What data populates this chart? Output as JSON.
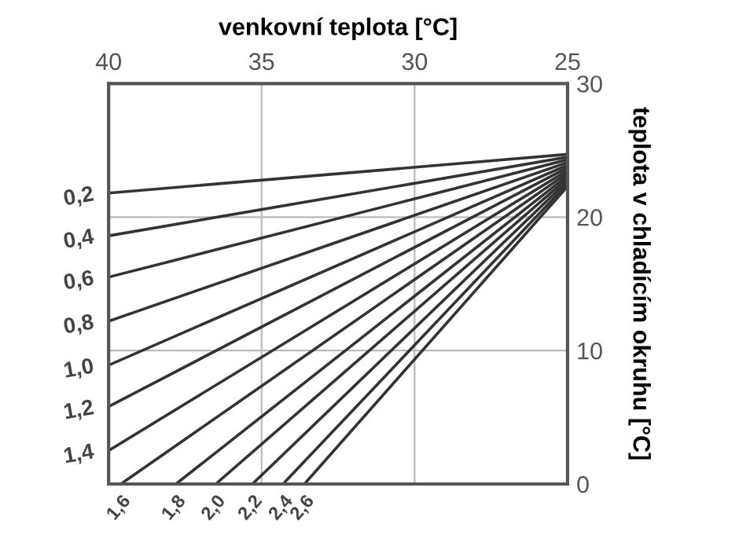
{
  "chart_data": {
    "type": "line",
    "xlabel": "venkovní teplota [°C]",
    "ylabel": "teplota v chladícím okruhu [°C]",
    "xlim": [
      40,
      25
    ],
    "xticks": [
      40,
      35,
      30,
      25
    ],
    "ylim": [
      0,
      30
    ],
    "yticks": [
      0,
      10,
      20,
      30
    ],
    "grid": true,
    "legend": false,
    "marker": "none",
    "line_style": "solid",
    "series": [
      {
        "name": "0,2",
        "color": "#333333",
        "x": [
          40,
          25
        ],
        "values": [
          21.8,
          24.7
        ]
      },
      {
        "name": "0,4",
        "color": "#333333",
        "x": [
          40,
          25
        ],
        "values": [
          18.6,
          24.5
        ]
      },
      {
        "name": "0,6",
        "color": "#333333",
        "x": [
          40,
          25
        ],
        "values": [
          15.5,
          24.3
        ]
      },
      {
        "name": "0,8",
        "color": "#333333",
        "x": [
          40,
          25
        ],
        "values": [
          12.2,
          24.1
        ]
      },
      {
        "name": "1,0",
        "color": "#333333",
        "x": [
          40,
          25
        ],
        "values": [
          8.9,
          23.9
        ]
      },
      {
        "name": "1,2",
        "color": "#333333",
        "x": [
          40,
          25
        ],
        "values": [
          5.8,
          23.7
        ]
      },
      {
        "name": "1,4",
        "color": "#333333",
        "x": [
          40,
          25
        ],
        "values": [
          2.5,
          23.5
        ]
      },
      {
        "name": "1,6",
        "color": "#333333",
        "x": [
          39.6,
          25
        ],
        "values": [
          0,
          23.3
        ]
      },
      {
        "name": "1,8",
        "color": "#333333",
        "x": [
          37.8,
          25
        ],
        "values": [
          0,
          23.1
        ]
      },
      {
        "name": "2,0",
        "color": "#333333",
        "x": [
          36.5,
          25
        ],
        "values": [
          0,
          22.9
        ]
      },
      {
        "name": "2,2",
        "color": "#333333",
        "x": [
          35.3,
          25
        ],
        "values": [
          0,
          22.7
        ]
      },
      {
        "name": "2,4",
        "color": "#333333",
        "x": [
          34.3,
          25
        ],
        "values": [
          0,
          22.5
        ]
      },
      {
        "name": "2,6",
        "color": "#333333",
        "x": [
          33.6,
          25
        ],
        "values": [
          0,
          22.3
        ]
      }
    ]
  }
}
